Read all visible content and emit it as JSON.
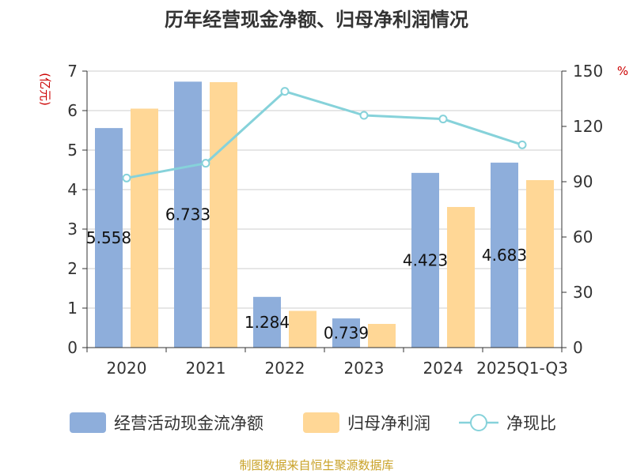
{
  "chart_data": {
    "type": "bar",
    "title": "历年经营现金净额、归母净利润情况",
    "categories": [
      "2020",
      "2021",
      "2022",
      "2023",
      "2024",
      "2025Q1-Q3"
    ],
    "series": [
      {
        "name": "经营活动现金流净额",
        "kind": "bar",
        "axis": "left",
        "values": [
          5.558,
          6.733,
          1.284,
          0.739,
          4.423,
          4.683
        ],
        "color": "#8eaedb",
        "labels": [
          "5.558",
          "6.733",
          "1.284",
          "0.739",
          "4.423",
          "4.683"
        ]
      },
      {
        "name": "归母净利润",
        "kind": "bar",
        "axis": "left",
        "values": [
          6.05,
          6.72,
          0.93,
          0.6,
          3.56,
          4.24
        ],
        "color": "#ffd796"
      },
      {
        "name": "净现比",
        "kind": "line",
        "axis": "right",
        "values": [
          92,
          100,
          139,
          126,
          124,
          110
        ],
        "color": "#86d2da"
      }
    ],
    "y_left": {
      "unit": "(亿元)",
      "range": [
        0,
        7
      ],
      "ticks": [
        "0",
        "1",
        "2",
        "3",
        "4",
        "5",
        "6",
        "7"
      ]
    },
    "y_right": {
      "unit": "%",
      "range": [
        0,
        150
      ],
      "ticks": [
        "0",
        "30",
        "60",
        "90",
        "120",
        "150"
      ]
    },
    "grid": true,
    "legend_position": "bottom"
  },
  "footer": {
    "source": "制图数据来自恒生聚源数据库"
  }
}
